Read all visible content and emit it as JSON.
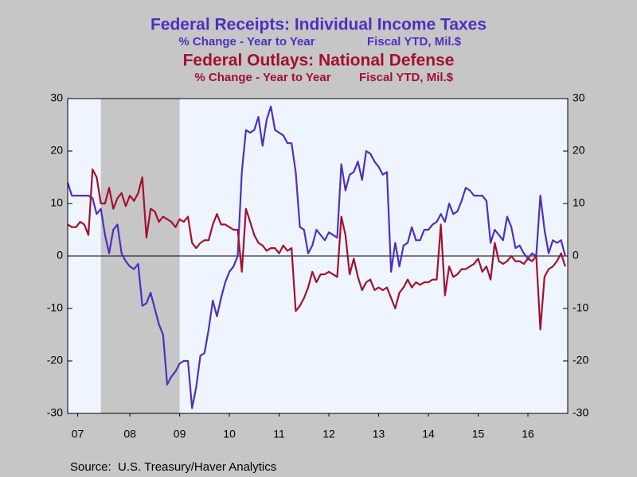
{
  "chart_data": {
    "type": "line",
    "series": [
      {
        "name": "Federal Receipts: Individual Income Taxes",
        "units": [
          "% Change - Year to Year",
          "Fiscal YTD, Mil.$"
        ],
        "color": "#4f2fc0",
        "values": [
          14,
          11.5,
          11.5,
          11.5,
          11.5,
          11.5,
          11,
          8,
          9,
          4,
          0.5,
          5,
          6,
          0.5,
          -1,
          -2,
          -2.5,
          -1.5,
          -9.5,
          -9,
          -7,
          -10,
          -13,
          -15,
          -24.5,
          -23,
          -22,
          -20.5,
          -20,
          -20,
          -29,
          -25,
          -19,
          -18.5,
          -14,
          -8.5,
          -11.5,
          -8,
          -5,
          -3,
          -2,
          0,
          16,
          24,
          23.5,
          24,
          26.5,
          21,
          26,
          28.5,
          24,
          23.5,
          23,
          21.5,
          21.5,
          16,
          5.5,
          5,
          0.5,
          2,
          5,
          4,
          3,
          4.5,
          4,
          3.5,
          17.5,
          12.5,
          15.5,
          16,
          18,
          14.5,
          20,
          19.5,
          18,
          17,
          15.5,
          16,
          -3,
          2.5,
          -2,
          2,
          2.5,
          5.5,
          3,
          3,
          5,
          5,
          6,
          6.5,
          8,
          6.5,
          10,
          8,
          8.5,
          10.5,
          13,
          12.5,
          11.5,
          11.5,
          11.5,
          10.5,
          2.5,
          5,
          4,
          3,
          7.5,
          5.5,
          1.5,
          2,
          0.5,
          -0.5,
          0.5,
          0,
          11.5,
          5,
          0.5,
          3,
          2.5,
          3,
          0
        ]
      },
      {
        "name": "Federal Outlays: National Defense",
        "units": [
          "% Change - Year to Year",
          "Fiscal YTD, Mil.$"
        ],
        "color": "#a3102e",
        "values": [
          6,
          5.5,
          5.5,
          6.5,
          6,
          4,
          16.5,
          15,
          10,
          10,
          13,
          9,
          11,
          12,
          9.5,
          11.5,
          10.5,
          12,
          15,
          3.5,
          9,
          8.5,
          6.5,
          7.5,
          7,
          6.5,
          5.5,
          7,
          6.5,
          7.5,
          2.5,
          1.5,
          2.5,
          3,
          3,
          6,
          8,
          6,
          6,
          5.5,
          5,
          5,
          -3,
          9,
          6.5,
          4,
          2.5,
          2,
          1,
          1.5,
          1.5,
          0.5,
          2,
          1,
          1.5,
          -10.5,
          -9.5,
          -8,
          -6,
          -3,
          -5,
          -3.5,
          -3.5,
          -3,
          -3.5,
          -4,
          7.5,
          4,
          -3.5,
          -0.5,
          -4,
          -6.5,
          -5,
          -4.5,
          -6.5,
          -6,
          -6.5,
          -6,
          -8,
          -10,
          -7,
          -6,
          -4.5,
          -6,
          -5,
          -5.5,
          -5,
          -5,
          -4.5,
          -4.5,
          6,
          -7.5,
          -2,
          -4,
          -3.5,
          -2.5,
          -2.5,
          -2,
          -1.5,
          -0.5,
          -3,
          -2,
          -4.5,
          2.5,
          -1,
          -1.5,
          -1,
          0,
          -1,
          -1,
          -1.5,
          -0.5,
          -1,
          0,
          -14,
          -4,
          -2.5,
          -2,
          -1,
          0.5,
          -2
        ]
      }
    ],
    "x": [
      2007.25,
      2007.333,
      2007.417,
      2007.5,
      2007.583,
      2007.667,
      2007.75,
      2007.833,
      2007.917,
      2008,
      2008.083,
      2008.167,
      2008.25,
      2008.333,
      2008.417,
      2008.5,
      2008.583,
      2008.667,
      2008.75,
      2008.833,
      2008.917,
      2009,
      2009.083,
      2009.167,
      2009.25,
      2009.333,
      2009.417,
      2009.5,
      2009.583,
      2009.667,
      2009.75,
      2009.833,
      2009.917,
      2010,
      2010.083,
      2010.167,
      2010.25,
      2010.333,
      2010.417,
      2010.5,
      2010.583,
      2010.667,
      2010.75,
      2010.833,
      2010.917,
      2011,
      2011.083,
      2011.167,
      2011.25,
      2011.333,
      2011.417,
      2011.5,
      2011.583,
      2011.667,
      2011.75,
      2011.833,
      2011.917,
      2012,
      2012.083,
      2012.167,
      2012.25,
      2012.333,
      2012.417,
      2012.5,
      2012.583,
      2012.667,
      2012.75,
      2012.833,
      2012.917,
      2013,
      2013.083,
      2013.167,
      2013.25,
      2013.333,
      2013.417,
      2013.5,
      2013.583,
      2013.667,
      2013.75,
      2013.833,
      2013.917,
      2014,
      2014.083,
      2014.167,
      2014.25,
      2014.333,
      2014.417,
      2014.5,
      2014.583,
      2014.667,
      2014.75,
      2014.833,
      2014.917,
      2015,
      2015.083,
      2015.167,
      2015.25,
      2015.333,
      2015.417,
      2015.5,
      2015.583,
      2015.667,
      2015.75,
      2015.833,
      2015.917,
      2016,
      2016.083,
      2016.167,
      2016.25,
      2016.333,
      2016.417,
      2016.5,
      2016.583,
      2016.667,
      2016.75,
      2016.833,
      2016.917,
      2017,
      2017.083,
      2017.167,
      2017.25
    ],
    "xlim": [
      2007.25,
      2017.3
    ],
    "xticks": [
      {
        "value": 2007.45,
        "label": "07"
      },
      {
        "value": 2008.5,
        "label": "08"
      },
      {
        "value": 2009.5,
        "label": "09"
      },
      {
        "value": 2010.5,
        "label": "10"
      },
      {
        "value": 2011.5,
        "label": "11"
      },
      {
        "value": 2012.5,
        "label": "12"
      },
      {
        "value": 2013.5,
        "label": "13"
      },
      {
        "value": 2014.5,
        "label": "14"
      },
      {
        "value": 2015.5,
        "label": "15"
      },
      {
        "value": 2016.5,
        "label": "16"
      }
    ],
    "ylim": [
      -30,
      30
    ],
    "yticks": [
      -30,
      -20,
      -10,
      0,
      10,
      20,
      30
    ],
    "y2lim": [
      -30,
      30
    ],
    "y2ticks": [
      -30,
      -20,
      -10,
      0,
      10,
      20,
      30
    ],
    "reference_line": 0,
    "recession_shading": [
      2007.917,
      2009.5
    ],
    "source": "Source:  U.S. Treasury/Haver Analytics"
  }
}
